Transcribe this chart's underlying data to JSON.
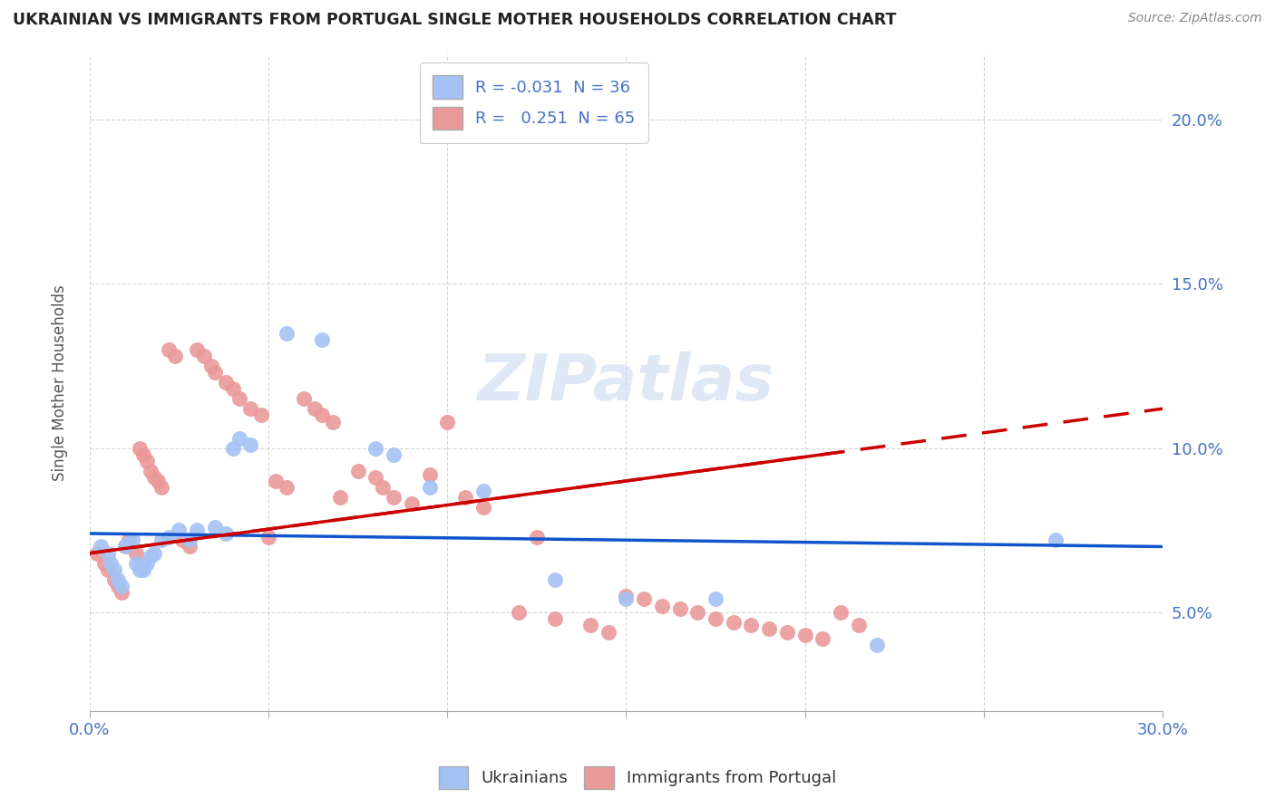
{
  "title": "UKRAINIAN VS IMMIGRANTS FROM PORTUGAL SINGLE MOTHER HOUSEHOLDS CORRELATION CHART",
  "source": "Source: ZipAtlas.com",
  "ylabel": "Single Mother Households",
  "xlim": [
    0.0,
    0.3
  ],
  "ylim": [
    0.02,
    0.22
  ],
  "yticks": [
    0.05,
    0.1,
    0.15,
    0.2
  ],
  "ytick_labels": [
    "5.0%",
    "10.0%",
    "15.0%",
    "20.0%"
  ],
  "xtick_positions": [
    0.0,
    0.05,
    0.1,
    0.15,
    0.2,
    0.25,
    0.3
  ],
  "legend_r_ukrainian": "-0.031",
  "legend_n_ukrainian": "36",
  "legend_r_portugal": "0.251",
  "legend_n_portugal": "65",
  "watermark": "ZIPatlas",
  "blue_color": "#a4c2f4",
  "pink_color": "#ea9999",
  "blue_line_color": "#1155cc",
  "pink_line_color": "#cc0000",
  "ukrainians_x": [
    0.003,
    0.005,
    0.006,
    0.007,
    0.008,
    0.009,
    0.01,
    0.011,
    0.012,
    0.013,
    0.014,
    0.015,
    0.016,
    0.017,
    0.018,
    0.02,
    0.022,
    0.025,
    0.028,
    0.03,
    0.035,
    0.038,
    0.04,
    0.042,
    0.045,
    0.055,
    0.065,
    0.08,
    0.085,
    0.095,
    0.11,
    0.13,
    0.15,
    0.175,
    0.22,
    0.27
  ],
  "ukrainians_y": [
    0.07,
    0.068,
    0.065,
    0.063,
    0.06,
    0.058,
    0.07,
    0.071,
    0.072,
    0.065,
    0.063,
    0.063,
    0.065,
    0.067,
    0.068,
    0.072,
    0.073,
    0.075,
    0.072,
    0.075,
    0.076,
    0.074,
    0.1,
    0.103,
    0.101,
    0.135,
    0.133,
    0.1,
    0.098,
    0.088,
    0.087,
    0.06,
    0.054,
    0.054,
    0.04,
    0.072
  ],
  "portugal_x": [
    0.002,
    0.004,
    0.005,
    0.007,
    0.008,
    0.009,
    0.01,
    0.011,
    0.013,
    0.014,
    0.015,
    0.016,
    0.017,
    0.018,
    0.019,
    0.02,
    0.022,
    0.024,
    0.026,
    0.028,
    0.03,
    0.032,
    0.034,
    0.035,
    0.038,
    0.04,
    0.042,
    0.045,
    0.048,
    0.05,
    0.052,
    0.055,
    0.06,
    0.063,
    0.065,
    0.068,
    0.07,
    0.075,
    0.08,
    0.082,
    0.085,
    0.09,
    0.095,
    0.1,
    0.105,
    0.11,
    0.12,
    0.125,
    0.13,
    0.14,
    0.145,
    0.15,
    0.155,
    0.16,
    0.165,
    0.17,
    0.175,
    0.18,
    0.185,
    0.19,
    0.195,
    0.2,
    0.205,
    0.21,
    0.215
  ],
  "portugal_y": [
    0.068,
    0.065,
    0.063,
    0.06,
    0.058,
    0.056,
    0.07,
    0.072,
    0.068,
    0.1,
    0.098,
    0.096,
    0.093,
    0.091,
    0.09,
    0.088,
    0.13,
    0.128,
    0.072,
    0.07,
    0.13,
    0.128,
    0.125,
    0.123,
    0.12,
    0.118,
    0.115,
    0.112,
    0.11,
    0.073,
    0.09,
    0.088,
    0.115,
    0.112,
    0.11,
    0.108,
    0.085,
    0.093,
    0.091,
    0.088,
    0.085,
    0.083,
    0.092,
    0.108,
    0.085,
    0.082,
    0.05,
    0.073,
    0.048,
    0.046,
    0.044,
    0.055,
    0.054,
    0.052,
    0.051,
    0.05,
    0.048,
    0.047,
    0.046,
    0.045,
    0.044,
    0.043,
    0.042,
    0.05,
    0.046
  ],
  "ukrainian_line_x": [
    0.0,
    0.3
  ],
  "ukrainian_line_y": [
    0.074,
    0.07
  ],
  "portugal_line_x": [
    0.0,
    0.3
  ],
  "portugal_line_y": [
    0.068,
    0.112
  ]
}
